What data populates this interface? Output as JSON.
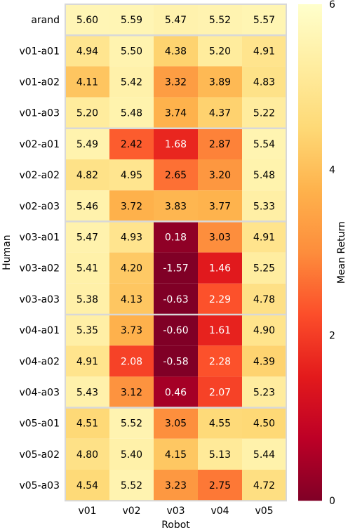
{
  "chart_data": {
    "type": "heatmap",
    "xlabel": "Robot",
    "ylabel": "Human",
    "x_categories": [
      "v01",
      "v02",
      "v03",
      "v04",
      "v05"
    ],
    "y_categories": [
      "arand",
      "v01-a01",
      "v01-a02",
      "v01-a03",
      "v02-a01",
      "v02-a02",
      "v02-a03",
      "v03-a01",
      "v03-a02",
      "v03-a03",
      "v04-a01",
      "v04-a02",
      "v04-a03",
      "v05-a01",
      "v05-a02",
      "v05-a03"
    ],
    "values": [
      [
        5.6,
        5.59,
        5.47,
        5.52,
        5.57
      ],
      [
        4.94,
        5.5,
        4.38,
        5.2,
        4.91
      ],
      [
        4.11,
        5.42,
        3.32,
        3.89,
        4.83
      ],
      [
        5.2,
        5.48,
        3.74,
        4.37,
        5.22
      ],
      [
        5.49,
        2.42,
        1.68,
        2.87,
        5.54
      ],
      [
        4.82,
        4.95,
        2.65,
        3.2,
        5.48
      ],
      [
        5.46,
        3.72,
        3.83,
        3.77,
        5.33
      ],
      [
        5.47,
        4.93,
        0.18,
        3.03,
        4.91
      ],
      [
        5.41,
        4.2,
        -1.57,
        1.46,
        5.25
      ],
      [
        5.38,
        4.13,
        -0.63,
        2.29,
        4.78
      ],
      [
        5.35,
        3.73,
        -0.6,
        1.61,
        4.9
      ],
      [
        4.91,
        2.08,
        -0.58,
        2.28,
        4.39
      ],
      [
        5.43,
        3.12,
        0.46,
        2.07,
        5.23
      ],
      [
        4.51,
        5.52,
        3.05,
        4.55,
        4.5
      ],
      [
        4.8,
        5.4,
        4.15,
        5.13,
        5.44
      ],
      [
        4.54,
        5.52,
        3.23,
        2.75,
        4.72
      ]
    ],
    "value_labels": [
      [
        "5.60",
        "5.59",
        "5.47",
        "5.52",
        "5.57"
      ],
      [
        "4.94",
        "5.50",
        "4.38",
        "5.20",
        "4.91"
      ],
      [
        "4.11",
        "5.42",
        "3.32",
        "3.89",
        "4.83"
      ],
      [
        "5.20",
        "5.48",
        "3.74",
        "4.37",
        "5.22"
      ],
      [
        "5.49",
        "2.42",
        "1.68",
        "2.87",
        "5.54"
      ],
      [
        "4.82",
        "4.95",
        "2.65",
        "3.20",
        "5.48"
      ],
      [
        "5.46",
        "3.72",
        "3.83",
        "3.77",
        "5.33"
      ],
      [
        "5.47",
        "4.93",
        "0.18",
        "3.03",
        "4.91"
      ],
      [
        "5.41",
        "4.20",
        "-1.57",
        "1.46",
        "5.25"
      ],
      [
        "5.38",
        "4.13",
        "-0.63",
        "2.29",
        "4.78"
      ],
      [
        "5.35",
        "3.73",
        "-0.60",
        "1.61",
        "4.90"
      ],
      [
        "4.91",
        "2.08",
        "-0.58",
        "2.28",
        "4.39"
      ],
      [
        "5.43",
        "3.12",
        "0.46",
        "2.07",
        "5.23"
      ],
      [
        "4.51",
        "5.52",
        "3.05",
        "4.55",
        "4.50"
      ],
      [
        "4.80",
        "5.40",
        "4.15",
        "5.13",
        "5.44"
      ],
      [
        "4.54",
        "5.52",
        "3.23",
        "2.75",
        "4.72"
      ]
    ],
    "group_separators_after_rows": [
      0,
      3,
      6,
      9,
      12
    ],
    "colorbar": {
      "label": "Mean Return",
      "range": [
        0,
        6
      ],
      "ticks": [
        0,
        2,
        4,
        6
      ],
      "colormap": "YlOrRd",
      "colors": [
        "#800026",
        "#bd0026",
        "#e31a1c",
        "#fc4e2a",
        "#fd8d3c",
        "#feb24c",
        "#fed976",
        "#ffeda0",
        "#ffffcc"
      ]
    },
    "grid": false,
    "colorbar_position": "right"
  }
}
